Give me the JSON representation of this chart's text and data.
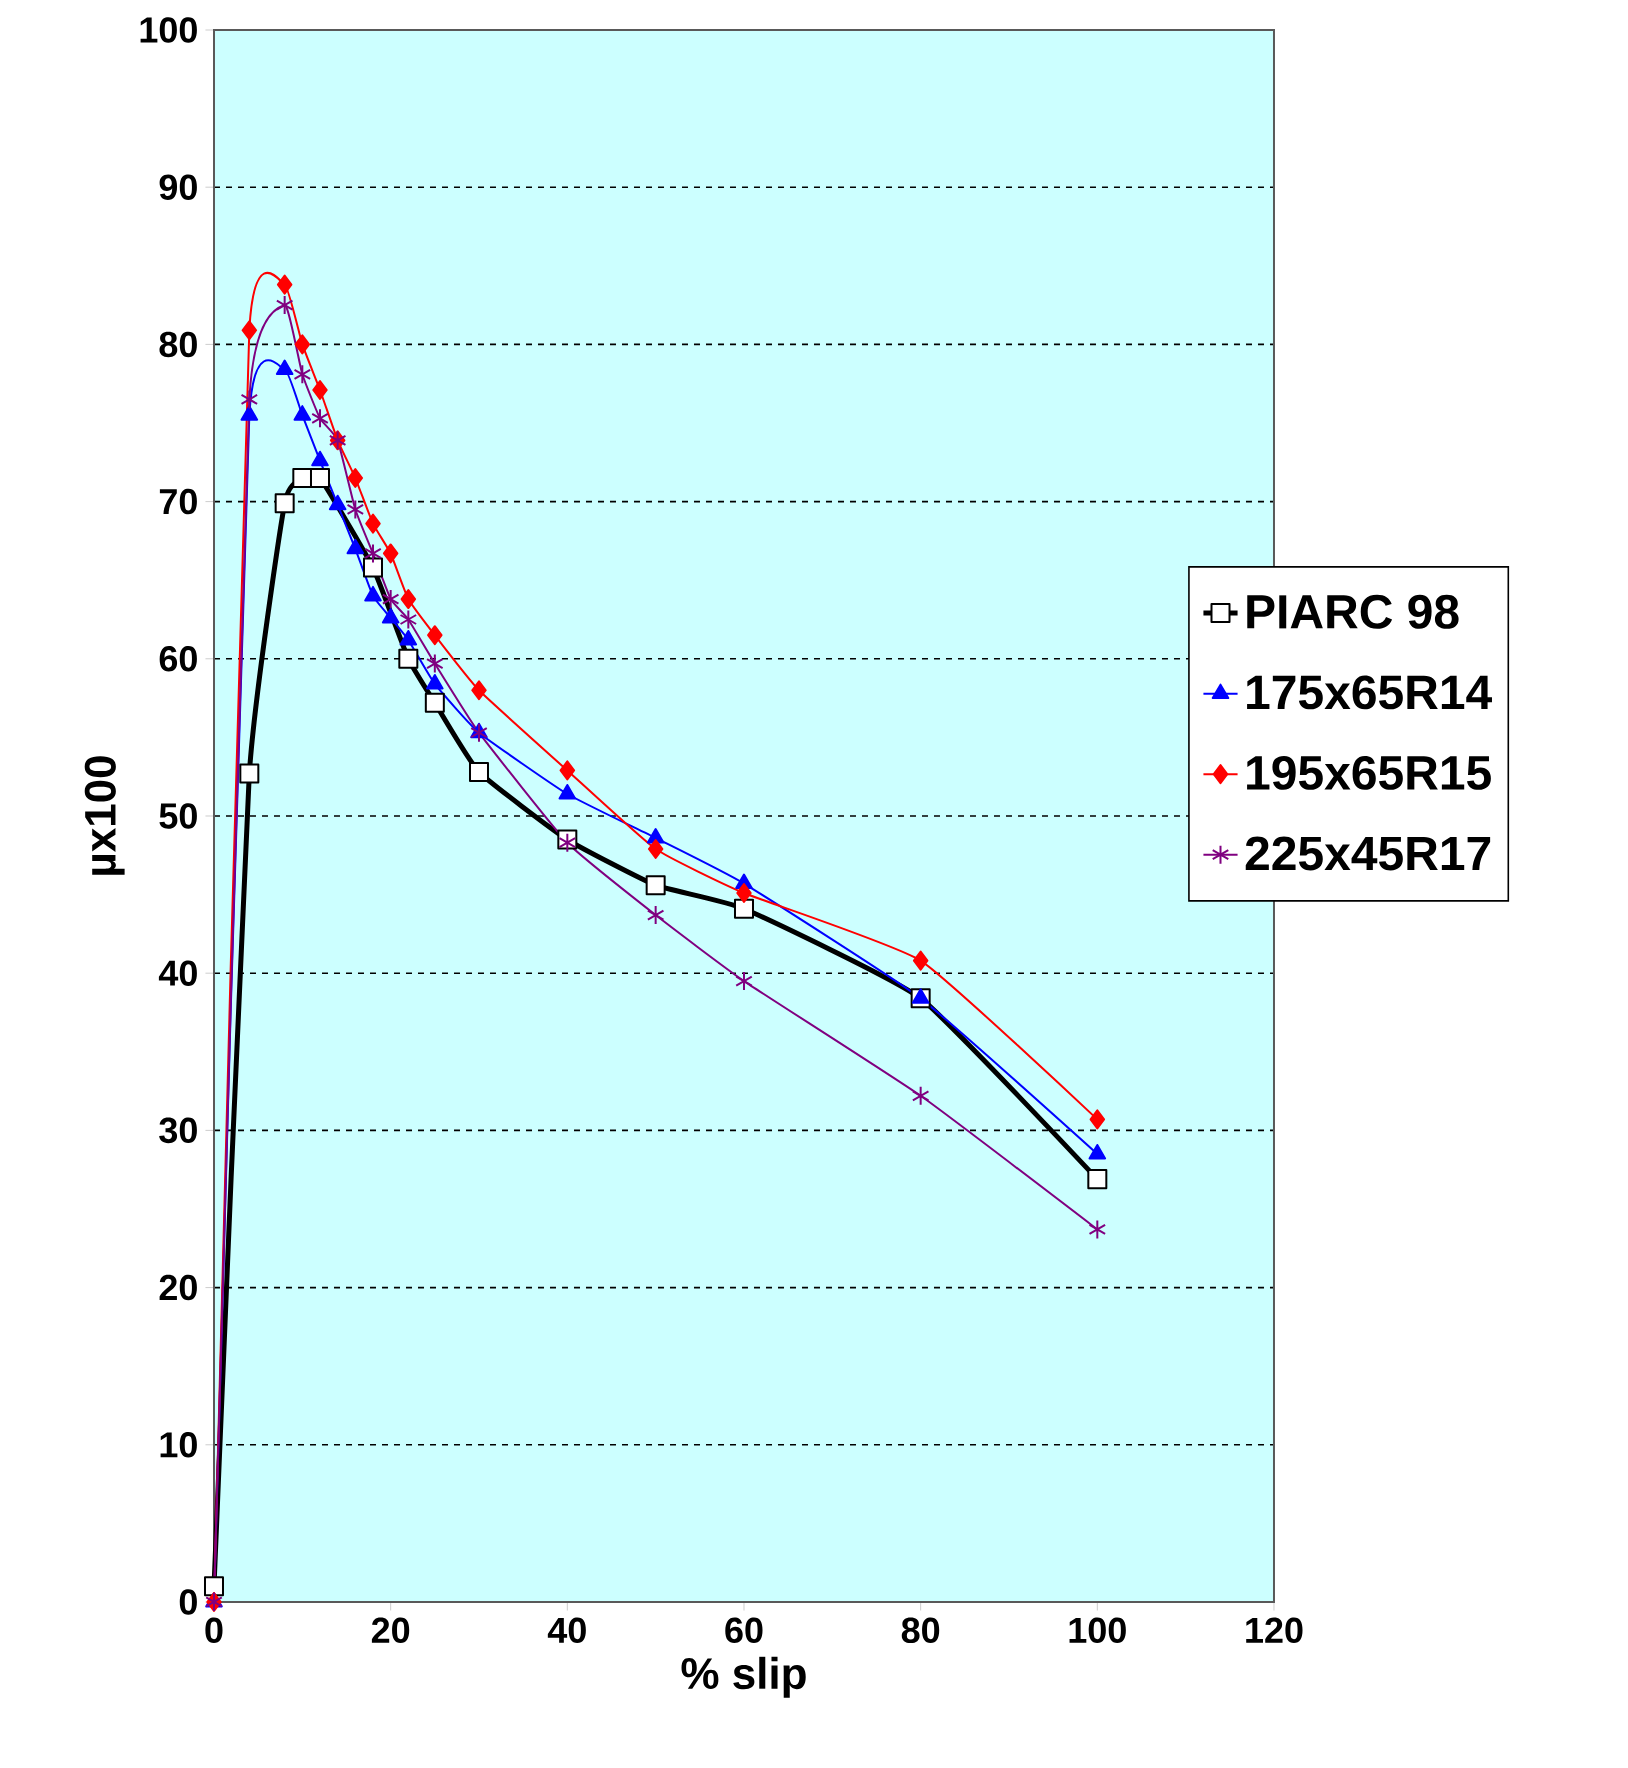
{
  "chart_data": {
    "type": "line",
    "xlabel": "% slip",
    "ylabel": "µx100",
    "xlim": [
      0,
      120
    ],
    "xticks": [
      0,
      20,
      40,
      60,
      80,
      100,
      120
    ],
    "ylim": [
      0,
      100
    ],
    "yticks": [
      0,
      10,
      20,
      30,
      40,
      50,
      60,
      70,
      80,
      90,
      100
    ],
    "grid": "y",
    "legend": "right",
    "line_style": "solid",
    "series": [
      {
        "name": "PIARC 98",
        "color": "#000000",
        "marker": "square",
        "x": [
          0,
          4,
          8,
          10,
          12,
          18,
          22,
          25,
          30,
          40,
          50,
          60,
          80,
          100
        ],
        "values": [
          1,
          52.7,
          69.9,
          71.5,
          71.5,
          65.8,
          60.0,
          57.2,
          52.8,
          48.5,
          45.6,
          44.1,
          38.4,
          26.9
        ]
      },
      {
        "name": "175x65R14",
        "color": "#0000ff",
        "marker": "triangle",
        "x": [
          0,
          4,
          8,
          10,
          12,
          14,
          16,
          18,
          20,
          22,
          25,
          30,
          40,
          50,
          60,
          80,
          100
        ],
        "values": [
          0,
          75.5,
          78.4,
          75.5,
          72.6,
          69.8,
          67.0,
          64.0,
          62.6,
          61.2,
          58.4,
          55.3,
          51.4,
          48.6,
          45.7,
          38.4,
          28.5
        ]
      },
      {
        "name": "195x65R15",
        "color": "#ff0000",
        "marker": "diamond",
        "x": [
          0,
          4,
          8,
          10,
          12,
          14,
          16,
          18,
          20,
          22,
          25,
          30,
          40,
          50,
          60,
          80,
          100
        ],
        "values": [
          0,
          80.9,
          83.8,
          80.0,
          77.1,
          73.9,
          71.5,
          68.6,
          66.7,
          63.8,
          61.5,
          58.0,
          52.9,
          47.9,
          45.1,
          40.8,
          30.7
        ]
      },
      {
        "name": "225x45R17",
        "color": "#800080",
        "marker": "cross",
        "x": [
          0,
          4,
          8,
          10,
          12,
          14,
          16,
          18,
          20,
          22,
          25,
          30,
          40,
          50,
          60,
          80,
          100
        ],
        "values": [
          0,
          76.5,
          82.5,
          78.1,
          75.3,
          73.9,
          69.5,
          66.7,
          63.8,
          62.5,
          59.7,
          55.3,
          48.3,
          43.7,
          39.5,
          32.2,
          23.7
        ]
      }
    ]
  }
}
